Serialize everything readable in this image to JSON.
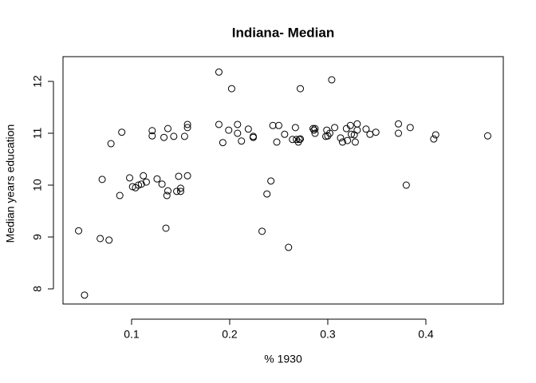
{
  "chart_data": {
    "type": "scatter",
    "title": "Indiana- Median",
    "x_label": "% 1930",
    "y_label": "Median years education",
    "xlim": [
      0.0301,
      0.4789
    ],
    "ylim": [
      7.708,
      12.477
    ],
    "xticks": [
      0.1,
      0.2,
      0.3,
      0.4
    ],
    "yticks": [
      8,
      9,
      10,
      11,
      12
    ],
    "color": "#000000",
    "x": [
      0.046,
      0.052,
      0.068,
      0.07,
      0.077,
      0.079,
      0.088,
      0.09,
      0.098,
      0.101,
      0.104,
      0.107,
      0.11,
      0.112,
      0.115,
      0.121,
      0.121,
      0.126,
      0.131,
      0.133,
      0.135,
      0.137,
      0.137,
      0.136,
      0.143,
      0.146,
      0.148,
      0.15,
      0.15,
      0.154,
      0.157,
      0.157,
      0.157,
      0.189,
      0.189,
      0.193,
      0.199,
      0.202,
      0.208,
      0.208,
      0.212,
      0.219,
      0.224,
      0.224,
      0.233,
      0.238,
      0.242,
      0.244,
      0.248,
      0.25,
      0.256,
      0.26,
      0.264,
      0.267,
      0.268,
      0.27,
      0.272,
      0.271,
      0.272,
      0.285,
      0.286,
      0.287,
      0.287,
      0.298,
      0.299,
      0.3,
      0.302,
      0.304,
      0.307,
      0.313,
      0.315,
      0.319,
      0.32,
      0.324,
      0.323,
      0.327,
      0.328,
      0.33,
      0.33,
      0.339,
      0.343,
      0.349,
      0.372,
      0.372,
      0.38,
      0.384,
      0.408,
      0.41,
      0.463
    ],
    "y": [
      9.12,
      7.88,
      8.97,
      10.11,
      8.94,
      10.8,
      9.8,
      11.02,
      10.14,
      9.97,
      9.95,
      10.0,
      10.02,
      10.18,
      10.06,
      11.05,
      10.95,
      10.12,
      10.02,
      10.92,
      9.17,
      11.09,
      9.89,
      9.8,
      10.94,
      9.88,
      10.17,
      9.94,
      9.88,
      10.94,
      11.11,
      11.17,
      10.18,
      12.18,
      11.17,
      10.82,
      11.06,
      11.86,
      11.17,
      11.0,
      10.85,
      11.08,
      10.94,
      10.92,
      9.11,
      9.83,
      10.08,
      11.15,
      10.83,
      11.15,
      10.98,
      8.8,
      10.88,
      11.11,
      10.88,
      10.83,
      11.86,
      10.88,
      10.89,
      11.09,
      11.06,
      11.0,
      11.09,
      10.94,
      11.06,
      10.95,
      11.0,
      12.03,
      11.11,
      10.91,
      10.83,
      11.09,
      10.86,
      10.98,
      11.15,
      10.97,
      10.83,
      11.18,
      11.06,
      11.08,
      10.98,
      11.02,
      11.18,
      11.0,
      10.0,
      11.11,
      10.89,
      10.97,
      10.95
    ]
  }
}
